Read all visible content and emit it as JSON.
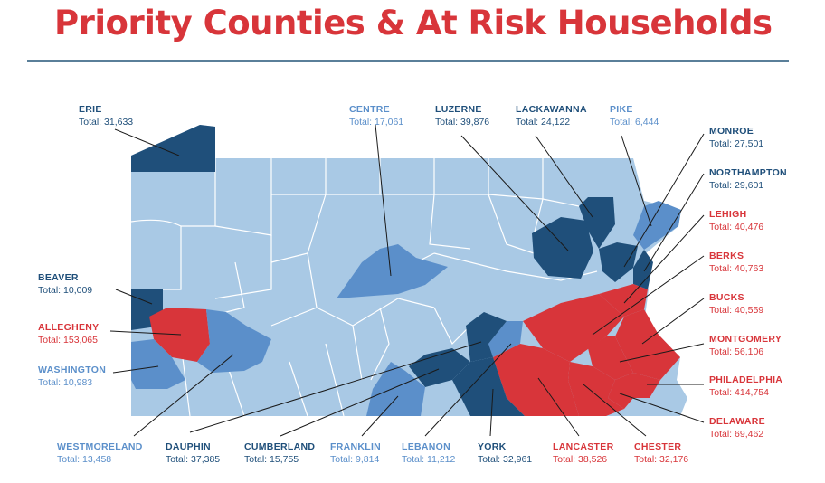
{
  "title": "Priority Counties & At Risk Households",
  "colors": {
    "title": "#d8353a",
    "dark_blue": "#1f4f7a",
    "medium_blue": "#5b8fca",
    "light_blue": "#a9c9e5",
    "red": "#d8353a"
  },
  "counties": {
    "erie": {
      "name": "ERIE",
      "total": "Total: 31,633",
      "category": "dark"
    },
    "centre": {
      "name": "CENTRE",
      "total": "Total: 17,061",
      "category": "medium"
    },
    "luzerne": {
      "name": "LUZERNE",
      "total": "Total: 39,876",
      "category": "dark"
    },
    "lackawanna": {
      "name": "LACKAWANNA",
      "total": "Total: 24,122",
      "category": "dark"
    },
    "pike": {
      "name": "PIKE",
      "total": "Total: 6,444",
      "category": "medium"
    },
    "monroe": {
      "name": "MONROE",
      "total": "Total: 27,501",
      "category": "dark"
    },
    "northampton": {
      "name": "NORTHAMPTON",
      "total": "Total: 29,601",
      "category": "dark"
    },
    "lehigh": {
      "name": "LEHIGH",
      "total": "Total: 40,476",
      "category": "red"
    },
    "berks": {
      "name": "BERKS",
      "total": "Total: 40,763",
      "category": "red"
    },
    "bucks": {
      "name": "BUCKS",
      "total": "Total: 40,559",
      "category": "red"
    },
    "montgomery": {
      "name": "MONTGOMERY",
      "total": "Total: 56,106",
      "category": "red"
    },
    "philadelphia": {
      "name": "PHILADELPHIA",
      "total": "Total: 414,754",
      "category": "red"
    },
    "delaware": {
      "name": "DELAWARE",
      "total": "Total: 69,462",
      "category": "red"
    },
    "beaver": {
      "name": "BEAVER",
      "total": "Total: 10,009",
      "category": "dark"
    },
    "allegheny": {
      "name": "ALLEGHENY",
      "total": "Total: 153,065",
      "category": "red"
    },
    "washington": {
      "name": "WASHINGTON",
      "total": "Total: 10,983",
      "category": "medium"
    },
    "westmoreland": {
      "name": "WESTMORELAND",
      "total": "Total: 13,458",
      "category": "medium"
    },
    "dauphin": {
      "name": "DAUPHIN",
      "total": "Total: 37,385",
      "category": "dark"
    },
    "cumberland": {
      "name": "CUMBERLAND",
      "total": "Total: 15,755",
      "category": "dark"
    },
    "franklin": {
      "name": "FRANKLIN",
      "total": "Total: 9,814",
      "category": "medium"
    },
    "lebanon": {
      "name": "LEBANON",
      "total": "Total: 11,212",
      "category": "medium"
    },
    "york": {
      "name": "YORK",
      "total": "Total: 32,961",
      "category": "dark"
    },
    "lancaster": {
      "name": "LANCASTER",
      "total": "Total: 38,526",
      "category": "red"
    },
    "chester": {
      "name": "CHESTER",
      "total": "Total: 32,176",
      "category": "red"
    }
  }
}
